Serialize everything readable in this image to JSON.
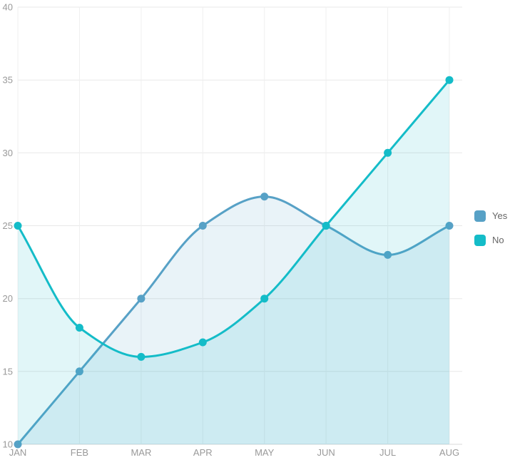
{
  "chart_data": {
    "type": "line",
    "title": "",
    "categories": [
      "JAN",
      "FEB",
      "MAR",
      "APR",
      "MAY",
      "JUN",
      "JUL",
      "AUG"
    ],
    "series": [
      {
        "name": "Yes",
        "values": [
          10,
          15,
          20,
          25,
          27,
          25,
          23,
          25
        ],
        "color": "#57A1C6",
        "fill_opacity": 0.13
      },
      {
        "name": "No",
        "values": [
          25,
          18,
          16,
          17,
          20,
          25,
          30,
          35
        ],
        "color": "#14BCC8",
        "fill_opacity": 0.13
      }
    ],
    "xlabel": "",
    "ylabel": "",
    "ylim": [
      10,
      40
    ],
    "yticks": [
      10,
      15,
      20,
      25,
      30,
      35,
      40
    ],
    "smooth": true,
    "area": true,
    "grid": true,
    "legend": {
      "position": "right",
      "items": [
        "Yes",
        "No"
      ]
    }
  }
}
